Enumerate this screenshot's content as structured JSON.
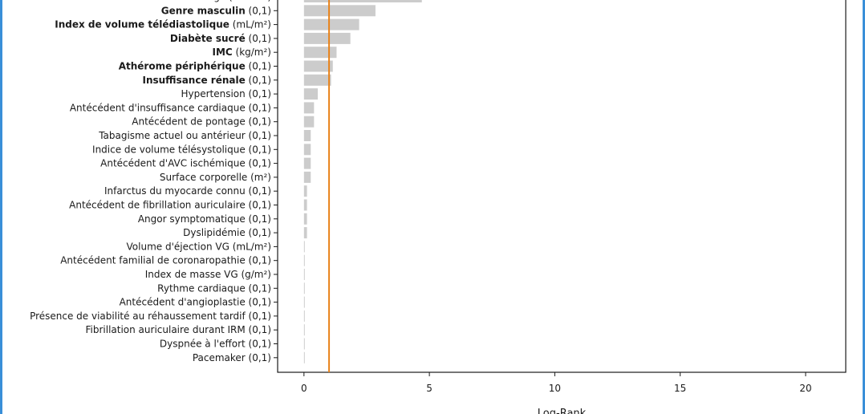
{
  "chart_data": {
    "type": "bar",
    "orientation": "horizontal",
    "xlabel": "Log-Rank",
    "xlim": [
      -1.05,
      21.6
    ],
    "xticks": [
      0,
      5,
      10,
      15,
      20
    ],
    "reference_line": {
      "x": 1,
      "color": "#e8831a"
    },
    "bar_color": "#cccccc",
    "categories": [
      {
        "bold": "",
        "rest": "Âge (années)",
        "value": 4.7
      },
      {
        "bold": "Genre masculin",
        "rest": " (0,1)",
        "value": 2.85
      },
      {
        "bold": "Index de volume télédiastolique",
        "rest": " (mL/m²)",
        "value": 2.2
      },
      {
        "bold": "Diabète sucré",
        "rest": " (0,1)",
        "value": 1.85
      },
      {
        "bold": "IMC",
        "rest": " (kg/m²)",
        "value": 1.3
      },
      {
        "bold": "Athérome périphérique",
        "rest": " (0,1)",
        "value": 1.15
      },
      {
        "bold": "Insuffisance rénale",
        "rest": " (0,1)",
        "value": 1.08
      },
      {
        "bold": "",
        "rest": "Hypertension (0,1)",
        "value": 0.55
      },
      {
        "bold": "",
        "rest": "Antécédent d'insuffisance cardiaque (0,1)",
        "value": 0.4
      },
      {
        "bold": "",
        "rest": "Antécédent de pontage (0,1)",
        "value": 0.4
      },
      {
        "bold": "",
        "rest": "Tabagisme actuel ou antérieur (0,1)",
        "value": 0.27
      },
      {
        "bold": "",
        "rest": "Indice de volume télésystolique (0,1)",
        "value": 0.27
      },
      {
        "bold": "",
        "rest": "Antécédent d'AVC ischémique (0,1)",
        "value": 0.27
      },
      {
        "bold": "",
        "rest": "Surface corporelle (m²)",
        "value": 0.27
      },
      {
        "bold": "",
        "rest": "Infarctus du myocarde connu (0,1)",
        "value": 0.12
      },
      {
        "bold": "",
        "rest": "Antécédent de fibrillation auriculaire (0,1)",
        "value": 0.12
      },
      {
        "bold": "",
        "rest": "Angor symptomatique (0,1)",
        "value": 0.12
      },
      {
        "bold": "",
        "rest": "Dyslipidémie (0,1)",
        "value": 0.12
      },
      {
        "bold": "",
        "rest": "Volume d'éjection VG (mL/m²)",
        "value": 0.03
      },
      {
        "bold": "",
        "rest": "Antécédent familial de coronaropathie (0,1)",
        "value": 0.03
      },
      {
        "bold": "",
        "rest": "Index de masse VG (g/m²)",
        "value": 0.03
      },
      {
        "bold": "",
        "rest": "Rythme cardiaque (0,1)",
        "value": 0.03
      },
      {
        "bold": "",
        "rest": "Antécédent d'angioplastie (0,1)",
        "value": 0.03
      },
      {
        "bold": "",
        "rest": "Présence de viabilité au réhaussement tardif (0,1)",
        "value": 0.03
      },
      {
        "bold": "",
        "rest": "Fibrillation auriculaire durant IRM (0,1)",
        "value": 0.03
      },
      {
        "bold": "",
        "rest": "Dyspnée à l'effort (0,1)",
        "value": 0.03
      },
      {
        "bold": "",
        "rest": "Pacemaker (0,1)",
        "value": 0.03
      }
    ]
  }
}
